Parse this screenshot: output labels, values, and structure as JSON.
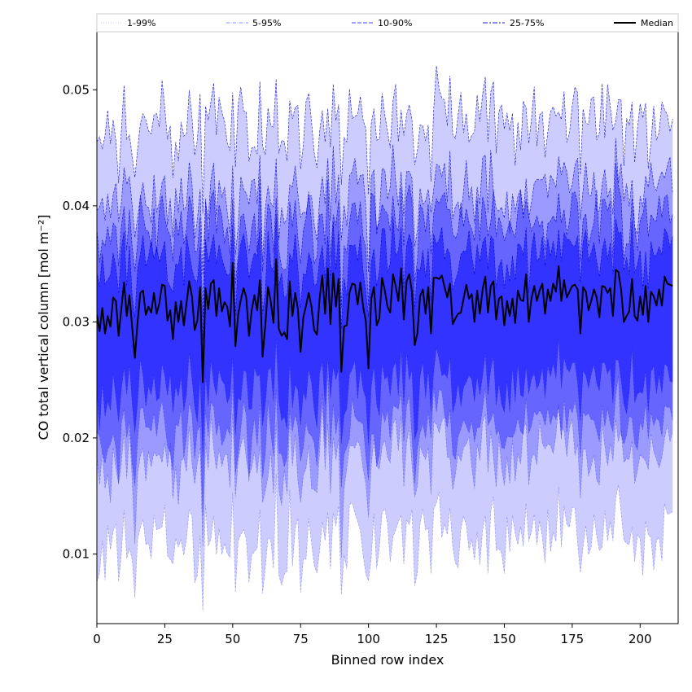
{
  "chart_data": {
    "type": "area",
    "title": "",
    "xlabel": "Binned row index",
    "ylabel": "CO total vertical column [mol m⁻²]",
    "xlim": [
      0,
      214
    ],
    "ylim": [
      0.004,
      0.055
    ],
    "xticks": [
      0,
      25,
      50,
      75,
      100,
      125,
      150,
      175,
      200
    ],
    "yticks": [
      0.01,
      0.02,
      0.03,
      0.04,
      0.05
    ],
    "xtick_labels": [
      "0",
      "25",
      "50",
      "75",
      "100",
      "125",
      "150",
      "175",
      "200"
    ],
    "ytick_labels": [
      "0.01",
      "0.02",
      "0.03",
      "0.04",
      "0.05"
    ],
    "grid": false,
    "legend_position": "top",
    "x_step": 1,
    "band_order": [
      "1-99%",
      "5-95%",
      "10-90%",
      "25-75%"
    ],
    "colors": {
      "band_1_99": "#ccccff",
      "band_5_95": "#9a9aff",
      "band_10_90": "#6666ff",
      "band_25_75": "#3333ff",
      "band_edge": "#0000cc",
      "median": "#000000"
    },
    "series": [
      {
        "name": "Median",
        "values": [
          0.0306,
          0.0292,
          0.0312,
          0.029,
          0.0305,
          0.0296,
          0.0321,
          0.0318,
          0.0288,
          0.0311,
          0.0334,
          0.0305,
          0.0323,
          0.0295,
          0.0269,
          0.03,
          0.0325,
          0.0327,
          0.0306,
          0.0313,
          0.0308,
          0.0325,
          0.0307,
          0.0316,
          0.0332,
          0.0331,
          0.0301,
          0.031,
          0.0285,
          0.0317,
          0.03,
          0.0318,
          0.0297,
          0.0316,
          0.0335,
          0.0322,
          0.0293,
          0.0301,
          0.033,
          0.0248,
          0.0329,
          0.0311,
          0.0333,
          0.0336,
          0.0305,
          0.0329,
          0.0309,
          0.0317,
          0.0313,
          0.0296,
          0.0351,
          0.0279,
          0.0306,
          0.0319,
          0.0329,
          0.0321,
          0.0288,
          0.031,
          0.0323,
          0.031,
          0.0336,
          0.027,
          0.0297,
          0.033,
          0.0318,
          0.0299,
          0.0354,
          0.0294,
          0.0288,
          0.0291,
          0.0285,
          0.0335,
          0.0305,
          0.0325,
          0.0311,
          0.0274,
          0.0304,
          0.0314,
          0.0325,
          0.0313,
          0.0293,
          0.0289,
          0.032,
          0.034,
          0.0307,
          0.0346,
          0.0298,
          0.0342,
          0.0313,
          0.0337,
          0.0257,
          0.0296,
          0.0297,
          0.0325,
          0.0333,
          0.0332,
          0.0315,
          0.0334,
          0.0313,
          0.0301,
          0.026,
          0.032,
          0.033,
          0.0297,
          0.0303,
          0.0338,
          0.0327,
          0.0313,
          0.0308,
          0.0341,
          0.0331,
          0.0318,
          0.0346,
          0.0302,
          0.0335,
          0.0341,
          0.0326,
          0.028,
          0.029,
          0.0322,
          0.0328,
          0.0307,
          0.033,
          0.029,
          0.0338,
          0.0338,
          0.0337,
          0.034,
          0.033,
          0.0321,
          0.0333,
          0.0298,
          0.0303,
          0.0307,
          0.0308,
          0.032,
          0.0332,
          0.032,
          0.0324,
          0.03,
          0.0327,
          0.0307,
          0.0328,
          0.0339,
          0.0308,
          0.0331,
          0.0335,
          0.0302,
          0.032,
          0.0322,
          0.0297,
          0.0318,
          0.0305,
          0.032,
          0.0299,
          0.0327,
          0.0319,
          0.0318,
          0.0341,
          0.03,
          0.032,
          0.0331,
          0.0318,
          0.0327,
          0.0333,
          0.0307,
          0.0328,
          0.0318,
          0.0333,
          0.0326,
          0.0348,
          0.0318,
          0.0336,
          0.0321,
          0.0326,
          0.0331,
          0.0332,
          0.0328,
          0.029,
          0.033,
          0.0326,
          0.031,
          0.0318,
          0.0328,
          0.0321,
          0.0304,
          0.0331,
          0.033,
          0.0325,
          0.0329,
          0.0305,
          0.0345,
          0.0343,
          0.0328,
          0.03,
          0.0305,
          0.0309,
          0.0337,
          0.0305,
          0.0301,
          0.0322,
          0.0306,
          0.0331,
          0.03,
          0.0326,
          0.0322,
          0.0314,
          0.0328,
          0.0314,
          0.0339,
          0.0333,
          0.0332,
          0.0331
        ]
      }
    ]
  },
  "legend": {
    "entries": [
      {
        "label": "1-99%",
        "style": "thin-dotted"
      },
      {
        "label": "5-95%",
        "style": "thin-dashdot"
      },
      {
        "label": "10-90%",
        "style": "dashed"
      },
      {
        "label": "25-75%",
        "style": "dash-dot"
      },
      {
        "label": "Median",
        "style": "solid"
      }
    ]
  }
}
